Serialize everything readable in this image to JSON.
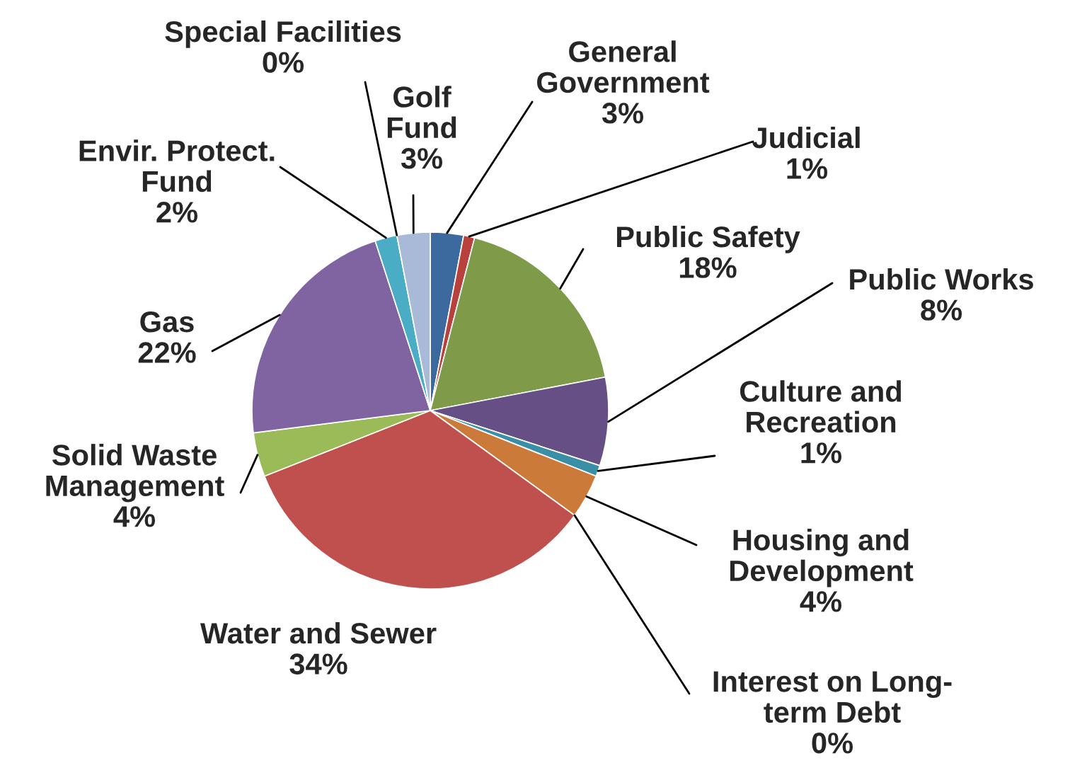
{
  "chart_data": {
    "type": "pie",
    "categories": [
      "General\nGovernment",
      "Judicial",
      "Public Safety",
      "Public Works",
      "Culture and\nRecreation",
      "Housing and\nDevelopment",
      "Interest on Long-\nterm Debt",
      "Water and Sewer",
      "Solid Waste\nManagement",
      "Gas",
      "Envir. Protect.\nFund",
      "Special Facilities",
      "Golf\nFund"
    ],
    "values": [
      3,
      1,
      18,
      8,
      1,
      4,
      0,
      34,
      4,
      22,
      2,
      0,
      3
    ],
    "value_labels": [
      "3%",
      "1%",
      "18%",
      "8%",
      "1%",
      "4%",
      "0%",
      "34%",
      "4%",
      "22%",
      "2%",
      "0%",
      "3%"
    ],
    "colors": [
      "#3d6a9e",
      "#b8413e",
      "#7f9b4a",
      "#664f85",
      "#3a8fa6",
      "#cc7a3a",
      "#a0a0a0",
      "#c0504d",
      "#9bbb59",
      "#8064a2",
      "#4bacc6",
      "#f79646",
      "#a9bad8"
    ],
    "legend": false
  }
}
